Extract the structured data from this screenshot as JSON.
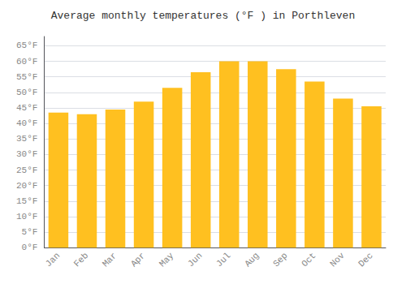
{
  "chart_data": {
    "type": "bar",
    "title": "Average monthly temperatures (°F ) in Porthleven",
    "categories": [
      "Jan",
      "Feb",
      "Mar",
      "Apr",
      "May",
      "Jun",
      "Jul",
      "Aug",
      "Sep",
      "Oct",
      "Nov",
      "Dec"
    ],
    "values": [
      43.5,
      43.0,
      44.5,
      47.0,
      51.5,
      56.5,
      60.0,
      60.0,
      57.5,
      53.5,
      48.0,
      45.5
    ],
    "color": "#FFC020",
    "ylim": [
      0,
      68
    ],
    "yticks": [
      {
        "value": 0,
        "label": "0°F"
      },
      {
        "value": 5,
        "label": "5°F"
      },
      {
        "value": 10,
        "label": "10°F"
      },
      {
        "value": 15,
        "label": "15°F"
      },
      {
        "value": 20,
        "label": "20°F"
      },
      {
        "value": 25,
        "label": "25°F"
      },
      {
        "value": 30,
        "label": "30°F"
      },
      {
        "value": 35,
        "label": "35°F"
      },
      {
        "value": 40,
        "label": "40°F"
      },
      {
        "value": 45,
        "label": "45°F"
      },
      {
        "value": 50,
        "label": "50°F"
      },
      {
        "value": 55,
        "label": "55°F"
      },
      {
        "value": 60,
        "label": "60°F"
      },
      {
        "value": 65,
        "label": "65°F"
      }
    ],
    "grid": true
  }
}
